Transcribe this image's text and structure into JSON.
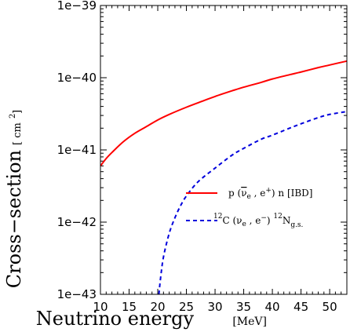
{
  "chart_data": {
    "type": "line",
    "xlabel": "Neutrino energy",
    "xlabel_unit": "[MeV]",
    "ylabel": "Cross−section",
    "ylabel_unit": "[ cm",
    "ylabel_unit_exp": "2",
    "ylabel_unit_close": " ]",
    "xlim": [
      10,
      53
    ],
    "ylim": [
      1e-43,
      1e-39
    ],
    "yscale": "log",
    "grid": false,
    "legend_position": "bottom-right",
    "x_ticks": [
      10,
      15,
      20,
      25,
      30,
      35,
      40,
      45,
      50
    ],
    "x_tick_labels": [
      "10",
      "15",
      "20",
      "25",
      "30",
      "35",
      "40",
      "45",
      "50"
    ],
    "y_ticks": [
      1e-43,
      1e-42,
      1e-41,
      1e-40,
      1e-39
    ],
    "y_tick_labels": [
      "1e−43",
      "1e−42",
      "1e−41",
      "1e−40",
      "1e−39"
    ],
    "series": [
      {
        "name": "p (ν̄e , e+) n [IBD]",
        "color": "#ff0000",
        "dash": "solid",
        "x": [
          10,
          11,
          12,
          14,
          16,
          18,
          20,
          22,
          25,
          28,
          30,
          33,
          35,
          38,
          40,
          43,
          45,
          48,
          50,
          53
        ],
        "y": [
          6e-42,
          7.6e-42,
          9.2e-42,
          1.3e-41,
          1.7e-41,
          2.1e-41,
          2.6e-41,
          3.1e-41,
          3.9e-41,
          4.8e-41,
          5.5e-41,
          6.6e-41,
          7.4e-41,
          8.6e-41,
          9.6e-41,
          1.1e-40,
          1.2e-40,
          1.38e-40,
          1.5e-40,
          1.7e-40
        ]
      },
      {
        "name": "12C (νe , e−) 12Ng.s.",
        "color": "#0000dd",
        "dash": "dashed",
        "x": [
          20.2,
          20.5,
          21,
          22,
          23,
          24,
          25,
          27,
          30,
          33,
          35,
          38,
          40,
          43,
          45,
          48,
          50,
          53
        ],
        "y": [
          1e-43,
          1.7e-43,
          3.3e-43,
          7e-43,
          1.15e-42,
          1.7e-42,
          2.3e-42,
          3.6e-42,
          5.6e-42,
          8.5e-42,
          1.05e-41,
          1.4e-41,
          1.6e-41,
          2e-41,
          2.3e-41,
          2.8e-41,
          3.1e-41,
          3.4e-41
        ]
      }
    ]
  }
}
